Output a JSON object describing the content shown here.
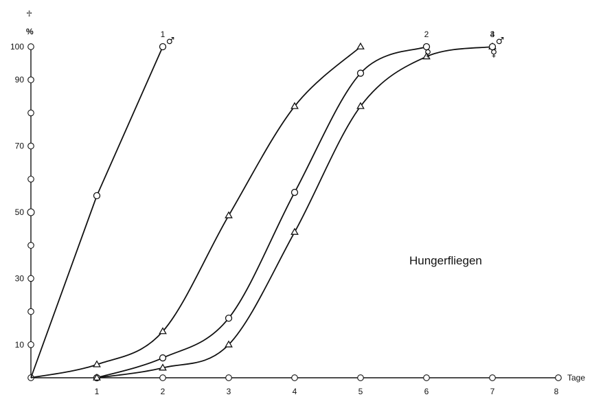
{
  "chart_data": {
    "type": "line",
    "title": "",
    "annotation": "Hungerfliegen",
    "xlabel": "Tage",
    "ylabel": "%",
    "ylabel_symbol": "♱",
    "xlim": [
      0,
      8
    ],
    "ylim": [
      0,
      100
    ],
    "x_ticks": [
      "1",
      "2",
      "3",
      "4",
      "5",
      "6",
      "7",
      "8"
    ],
    "y_ticks": [
      "10",
      "30",
      "50",
      "70",
      "90",
      "100"
    ],
    "y_minor_markers": [
      20,
      40,
      60,
      80
    ],
    "grid": false,
    "series": [
      {
        "label": "1",
        "sex": "♂",
        "marker": "circle",
        "x": [
          0,
          1,
          2
        ],
        "y": [
          0,
          55,
          100
        ]
      },
      {
        "label": "",
        "marker": "triangle",
        "x": [
          0,
          1,
          2,
          3,
          4,
          5
        ],
        "y": [
          0,
          4,
          14,
          49,
          82,
          100
        ]
      },
      {
        "label": "2",
        "sex": "♀",
        "marker": "circle",
        "x": [
          1,
          2,
          3,
          4,
          5,
          6
        ],
        "y": [
          0,
          6,
          18,
          56,
          92,
          100
        ]
      },
      {
        "label": "3",
        "sex": "♂",
        "marker": "triangle",
        "x": [
          1,
          2,
          3,
          4,
          5,
          6,
          7
        ],
        "y": [
          0,
          3,
          10,
          44,
          82,
          97,
          100
        ]
      },
      {
        "label": "4",
        "sex": "♀",
        "marker": "circle",
        "x": [
          7
        ],
        "y": [
          100
        ]
      }
    ]
  }
}
